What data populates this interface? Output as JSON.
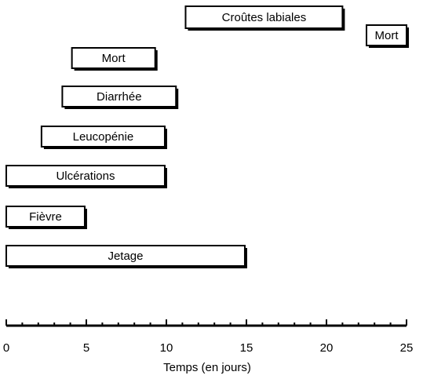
{
  "chart_data": {
    "type": "gantt",
    "title": "",
    "xlabel": "Temps (en jours)",
    "ylabel": "",
    "xlim": [
      0,
      25
    ],
    "xticks": [
      0,
      5,
      10,
      15,
      20,
      25
    ],
    "grid": false,
    "legend": "none",
    "bars": [
      {
        "label": "Croûtes labiales",
        "start": 11.2,
        "end": 21.0
      },
      {
        "label": "Mort",
        "start": 22.5,
        "end": 25.0
      },
      {
        "label": "Mort",
        "start": 4.1,
        "end": 9.3
      },
      {
        "label": "Diarrhée",
        "start": 3.5,
        "end": 10.6
      },
      {
        "label": "Leucopénie",
        "start": 2.2,
        "end": 9.9
      },
      {
        "label": "Ulcérations",
        "start": 0.0,
        "end": 9.9
      },
      {
        "label": "Fièvre",
        "start": 0.0,
        "end": 4.9
      },
      {
        "label": "Jetage",
        "start": 0.0,
        "end": 14.9
      }
    ]
  }
}
